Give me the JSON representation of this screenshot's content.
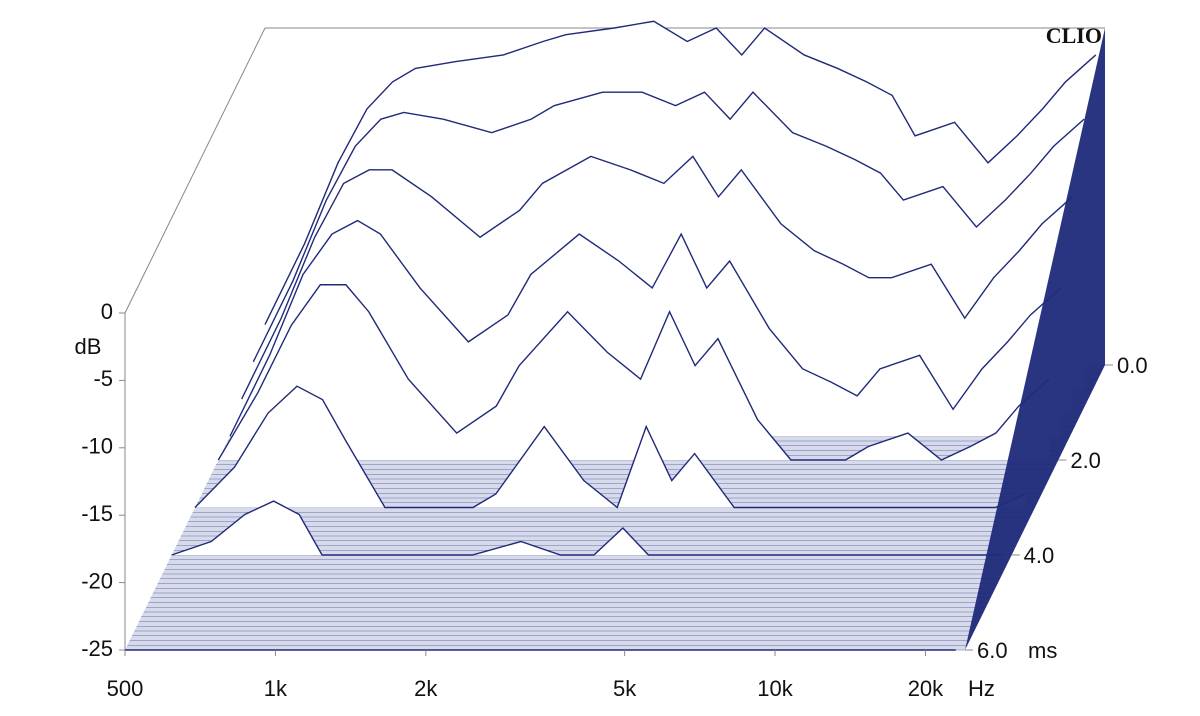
{
  "chart_data": {
    "type": "waterfall",
    "logo": "CLIO",
    "y_label": "dB",
    "x_unit": "Hz",
    "z_unit": "ms",
    "color": "#1f2a7a",
    "xlim": [
      500,
      24000
    ],
    "xlog": true,
    "xticks": [
      500,
      {
        "value": 1000,
        "label": "1k"
      },
      {
        "value": 2000,
        "label": "2k"
      },
      {
        "value": 5000,
        "label": "5k"
      },
      {
        "value": 10000,
        "label": "10k"
      },
      {
        "value": 20000,
        "label": "20k"
      }
    ],
    "ylim": [
      -25,
      0
    ],
    "yticks": [
      0,
      -5,
      -10,
      -15,
      -20,
      -25
    ],
    "zlim": [
      0,
      6
    ],
    "zticks": [
      {
        "value": 0,
        "label": "0.0"
      },
      {
        "value": 2,
        "label": "2.0"
      },
      {
        "value": 4,
        "label": "4.0"
      },
      {
        "value": 6,
        "label": "6.0"
      }
    ],
    "x": [
      500,
      600,
      700,
      800,
      900,
      1000,
      1200,
      1500,
      1800,
      2000,
      2500,
      3000,
      3500,
      4000,
      4500,
      5000,
      6000,
      7000,
      8000,
      9000,
      10000,
      12000,
      14000,
      16000,
      18000,
      20000,
      23000
    ],
    "slices": [
      {
        "t": 0,
        "values": [
          -22,
          -16,
          -10,
          -6,
          -4,
          -3,
          -2.5,
          -2,
          -1,
          -0.5,
          0,
          0.5,
          -1,
          0,
          -2,
          0,
          -2,
          -3,
          -4,
          -5,
          -8,
          -7,
          -10,
          -8,
          -6,
          -4,
          -2
        ]
      },
      {
        "t": 0.5,
        "values": [
          -23,
          -17,
          -11,
          -7,
          -5,
          -4.5,
          -5,
          -6,
          -5,
          -4,
          -3,
          -3,
          -4,
          -3,
          -5,
          -3,
          -6,
          -7,
          -8,
          -9,
          -11,
          -10,
          -13,
          -11,
          -9,
          -7,
          -5
        ]
      },
      {
        "t": 1,
        "values": [
          -24,
          -18,
          -12,
          -8,
          -7,
          -7,
          -9,
          -12,
          -10,
          -8,
          -6,
          -7,
          -8,
          -6,
          -9,
          -7,
          -11,
          -13,
          -14,
          -15,
          -15,
          -14,
          -18,
          -15,
          -13,
          -11,
          -9
        ]
      },
      {
        "t": 1.5,
        "values": [
          -25,
          -19,
          -13,
          -10,
          -9,
          -10,
          -14,
          -18,
          -16,
          -13,
          -10,
          -12,
          -14,
          -10,
          -14,
          -12,
          -17,
          -20,
          -21,
          -22,
          -20,
          -19,
          -23,
          -20,
          -18,
          -16,
          -14
        ]
      },
      {
        "t": 2,
        "values": [
          -25,
          -20,
          -15,
          -12,
          -12,
          -14,
          -19,
          -23,
          -21,
          -18,
          -14,
          -17,
          -19,
          -14,
          -18,
          -16,
          -22,
          -25,
          -25,
          -25,
          -24,
          -23,
          -25,
          -24,
          -23,
          -21,
          -19
        ]
      },
      {
        "t": 3,
        "values": [
          -25,
          -22,
          -18,
          -16,
          -17,
          -20,
          -25,
          -25,
          -25,
          -24,
          -19,
          -23,
          -25,
          -19,
          -23,
          -21,
          -25,
          -25,
          -25,
          -25,
          -25,
          -25,
          -25,
          -25,
          -25,
          -25,
          -24
        ]
      },
      {
        "t": 4,
        "values": [
          -25,
          -24,
          -22,
          -21,
          -22,
          -25,
          -25,
          -25,
          -25,
          -25,
          -24,
          -25,
          -25,
          -23,
          -25,
          -25,
          -25,
          -25,
          -25,
          -25,
          -25,
          -25,
          -25,
          -25,
          -25,
          -25,
          -25
        ]
      },
      {
        "t": 6,
        "values": [
          -25,
          -25,
          -25,
          -25,
          -25,
          -25,
          -25,
          -25,
          -25,
          -25,
          -25,
          -25,
          -25,
          -25,
          -25,
          -25,
          -25,
          -25,
          -25,
          -25,
          -25,
          -25,
          -25,
          -25,
          -25,
          -25,
          -25
        ]
      }
    ]
  }
}
